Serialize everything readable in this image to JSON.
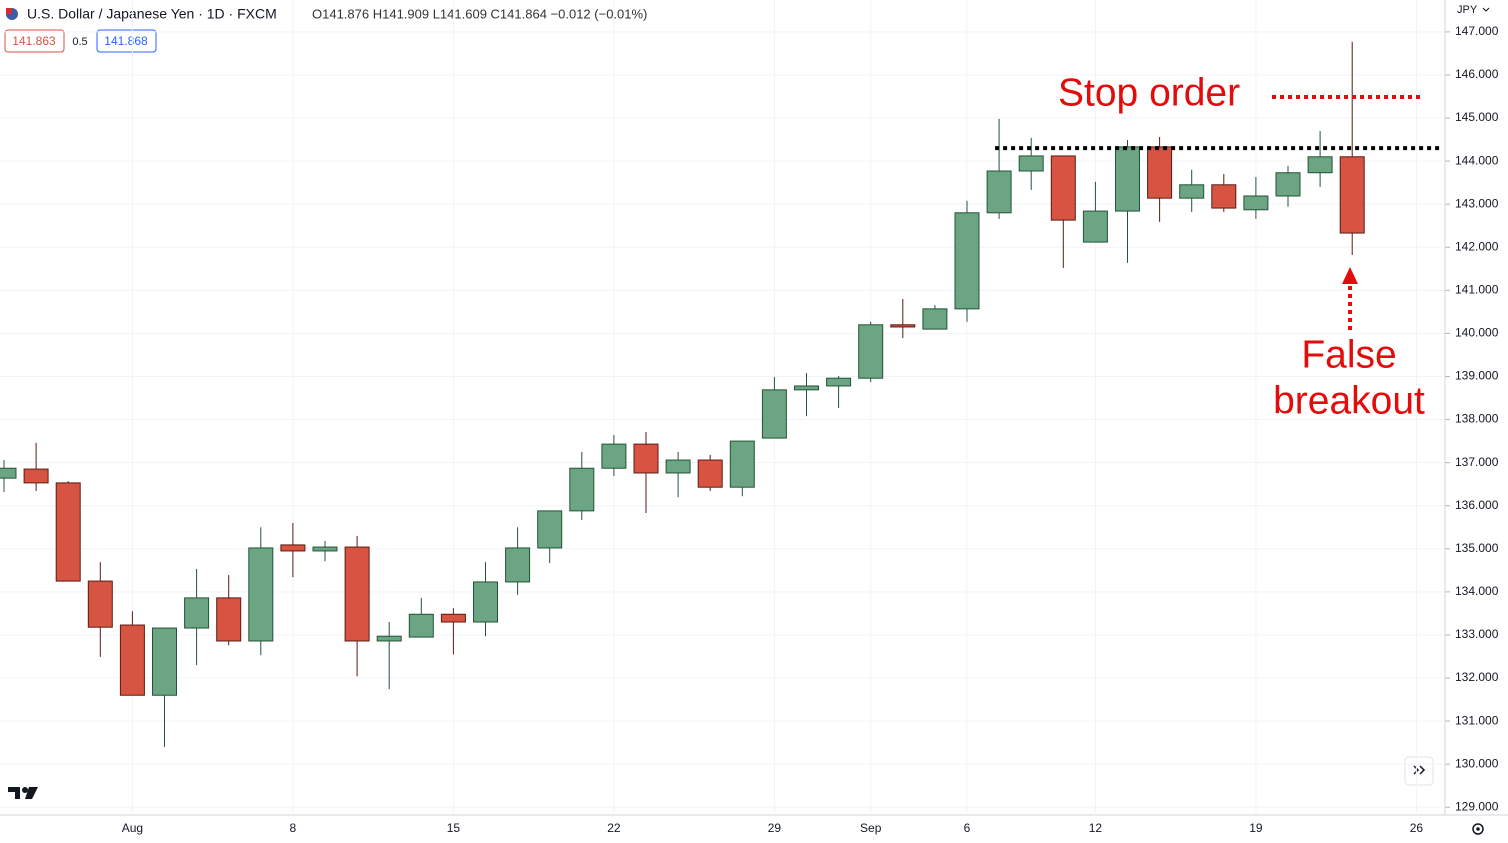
{
  "header": {
    "symbol": "U.S. Dollar / Japanese Yen · 1D · FXCM",
    "ohlc": "O141.876 H141.909 L141.609 C141.864 −0.012 (−0.01%)",
    "sell_price": "141.863",
    "spread": "0.5",
    "buy_price": "141.868"
  },
  "currency": "JPY",
  "chart_data": {
    "type": "candlestick",
    "categories": [
      null,
      null,
      null,
      null,
      "Aug",
      null,
      null,
      null,
      null,
      "8",
      null,
      null,
      null,
      null,
      "15",
      null,
      null,
      null,
      null,
      "22",
      null,
      null,
      null,
      null,
      "29",
      null,
      null,
      "Sep",
      null,
      null,
      "6",
      null,
      null,
      null,
      "12",
      null,
      null,
      null,
      null,
      "19",
      null,
      null,
      null,
      null,
      "26"
    ],
    "open": [
      136.64,
      136.85,
      136.53,
      134.25,
      133.23,
      131.6,
      133.16,
      133.86,
      132.86,
      135.09,
      134.95,
      135.04,
      132.86,
      132.95,
      133.48,
      133.3,
      134.23,
      135.02,
      135.88,
      136.87,
      137.43,
      136.76,
      137.06,
      136.43,
      137.57,
      138.69,
      138.78,
      138.96,
      140.2,
      140.1,
      140.57,
      142.8,
      143.77,
      144.12,
      142.12,
      142.84,
      144.33,
      143.14,
      143.45,
      142.87,
      143.19,
      143.73,
      144.1,
      null,
      null
    ],
    "high": [
      137.06,
      137.46,
      136.57,
      134.69,
      133.55,
      133.16,
      134.53,
      134.39,
      135.5,
      135.6,
      135.18,
      135.3,
      133.3,
      133.86,
      133.62,
      134.69,
      135.5,
      135.88,
      137.25,
      137.64,
      137.71,
      137.25,
      137.18,
      137.5,
      138.99,
      139.08,
      139.01,
      140.27,
      140.8,
      140.66,
      143.08,
      144.98,
      144.54,
      144.12,
      143.52,
      144.49,
      144.56,
      143.8,
      143.7,
      143.63,
      143.89,
      144.7,
      146.77,
      null,
      null
    ],
    "low": [
      136.32,
      136.34,
      134.25,
      132.49,
      131.6,
      130.4,
      132.3,
      132.76,
      132.53,
      134.34,
      134.71,
      132.04,
      131.74,
      132.95,
      132.55,
      132.97,
      133.93,
      134.67,
      135.67,
      136.69,
      135.83,
      136.2,
      136.34,
      136.22,
      137.57,
      138.08,
      138.27,
      138.87,
      139.89,
      140.1,
      140.27,
      142.66,
      143.33,
      141.52,
      142.12,
      141.64,
      142.59,
      142.82,
      142.82,
      142.66,
      142.94,
      143.4,
      141.82,
      null,
      null
    ],
    "close": [
      136.87,
      136.53,
      134.25,
      133.18,
      131.6,
      133.16,
      133.86,
      132.86,
      135.02,
      134.95,
      135.04,
      132.86,
      132.97,
      133.48,
      133.3,
      134.23,
      135.02,
      135.88,
      136.87,
      137.43,
      136.76,
      137.06,
      136.43,
      137.5,
      138.69,
      138.78,
      138.96,
      140.2,
      140.15,
      140.57,
      142.8,
      143.77,
      144.12,
      142.63,
      142.84,
      144.33,
      143.14,
      143.45,
      142.91,
      143.19,
      143.73,
      144.1,
      142.33,
      null,
      null
    ],
    "up_color": "#6ba583",
    "down_color": "#d75442",
    "ylim": [
      128.82,
      147.74
    ],
    "yticks": [
      {
        "value": 129,
        "label": "129.000"
      },
      {
        "value": 130,
        "label": "130.000"
      },
      {
        "value": 131,
        "label": "131.000"
      },
      {
        "value": 132,
        "label": "132.000"
      },
      {
        "value": 133,
        "label": "133.000"
      },
      {
        "value": 134,
        "label": "134.000"
      },
      {
        "value": 135,
        "label": "135.000"
      },
      {
        "value": 136,
        "label": "136.000"
      },
      {
        "value": 137,
        "label": "137.000"
      },
      {
        "value": 138,
        "label": "138.000"
      },
      {
        "value": 139,
        "label": "139.000"
      },
      {
        "value": 140,
        "label": "140.000"
      },
      {
        "value": 141,
        "label": "141.000"
      },
      {
        "value": 142,
        "label": "142.000"
      },
      {
        "value": 143,
        "label": "143.000"
      },
      {
        "value": 144,
        "label": "144.000"
      },
      {
        "value": 145,
        "label": "145.000"
      },
      {
        "value": 146,
        "label": "146.000"
      },
      {
        "value": 147,
        "label": "147.000"
      }
    ],
    "grid": true,
    "level": 144.3,
    "annotations": {
      "stop": "Stop order",
      "breakout": [
        "False",
        "breakout"
      ]
    }
  }
}
